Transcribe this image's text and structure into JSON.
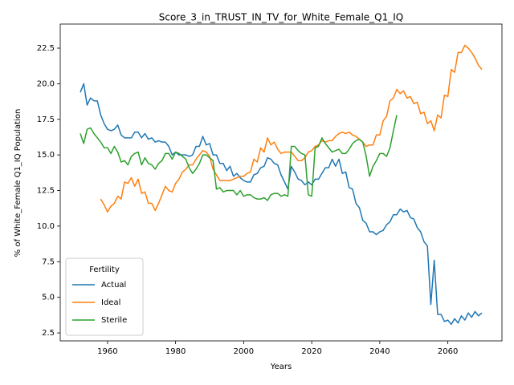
{
  "chart_data": {
    "type": "line",
    "title": "Score_3_in_TRUST_IN_TV_for_White_Female_Q1_IQ",
    "x_label": "Years",
    "y_label": "% of White_Female Q1_IQ Population",
    "legend_title": "Fertility",
    "legend": "lower left",
    "x": [
      1952,
      1953,
      1954,
      1955,
      1956,
      1957,
      1958,
      1959,
      1960,
      1961,
      1962,
      1963,
      1964,
      1965,
      1966,
      1967,
      1968,
      1969,
      1970,
      1971,
      1972,
      1973,
      1974,
      1975,
      1976,
      1977,
      1978,
      1979,
      1980,
      1981,
      1982,
      1983,
      1984,
      1985,
      1986,
      1987,
      1988,
      1989,
      1990,
      1991,
      1992,
      1993,
      1994,
      1995,
      1996,
      1997,
      1998,
      1999,
      2000,
      2001,
      2002,
      2003,
      2004,
      2005,
      2006,
      2007,
      2008,
      2009,
      2010,
      2011,
      2012,
      2013,
      2014,
      2015,
      2016,
      2017,
      2018,
      2019,
      2020,
      2021,
      2022,
      2023,
      2024,
      2025,
      2026,
      2027,
      2028,
      2029,
      2030,
      2031,
      2032,
      2033,
      2034,
      2035,
      2036,
      2037,
      2038,
      2039,
      2040,
      2041,
      2042,
      2043,
      2044,
      2045,
      2046,
      2047,
      2048,
      2049,
      2050,
      2051,
      2052,
      2053,
      2054,
      2055,
      2056,
      2057,
      2058,
      2059,
      2060,
      2061,
      2062,
      2063,
      2064,
      2065,
      2066,
      2067,
      2068,
      2069,
      2070
    ],
    "series": [
      {
        "name": "Actual",
        "color": "#1f77b4",
        "values": [
          19.4,
          20.0,
          18.5,
          19.0,
          18.8,
          18.8,
          17.8,
          17.2,
          16.8,
          16.7,
          16.8,
          17.1,
          16.4,
          16.2,
          16.2,
          16.2,
          16.6,
          16.6,
          16.2,
          16.5,
          16.1,
          16.2,
          15.9,
          16.0,
          15.9,
          15.9,
          15.6,
          15.0,
          15.2,
          15.0,
          15.0,
          15.0,
          14.9,
          15.0,
          15.6,
          15.6,
          16.3,
          15.7,
          15.8,
          15.0,
          15.0,
          14.4,
          14.4,
          13.9,
          14.2,
          13.5,
          13.7,
          13.4,
          13.2,
          13.1,
          13.1,
          13.6,
          13.7,
          14.1,
          14.2,
          14.8,
          14.7,
          14.4,
          14.3,
          13.6,
          13.1,
          12.6,
          14.2,
          13.8,
          13.3,
          13.2,
          12.9,
          13.1,
          12.9,
          13.3,
          13.3,
          13.7,
          14.1,
          14.1,
          14.7,
          14.2,
          14.7,
          13.7,
          13.8,
          12.7,
          12.6,
          11.6,
          11.3,
          10.4,
          10.2,
          9.6,
          9.6,
          9.4,
          9.6,
          9.7,
          10.1,
          10.3,
          10.8,
          10.8,
          11.2,
          11.0,
          11.1,
          10.6,
          10.5,
          9.9,
          9.6,
          8.9,
          8.6,
          4.5,
          7.6,
          3.8,
          3.8,
          3.3,
          3.4,
          3.1,
          3.5,
          3.2,
          3.7,
          3.4,
          3.9,
          3.6,
          4.0,
          3.7,
          3.9
        ]
      },
      {
        "name": "Ideal",
        "color": "#ff7f0e",
        "values": [
          null,
          null,
          null,
          null,
          null,
          null,
          11.9,
          11.5,
          11.0,
          11.4,
          11.6,
          12.1,
          11.9,
          13.1,
          13.0,
          13.4,
          12.8,
          13.3,
          12.3,
          12.4,
          11.6,
          11.6,
          11.1,
          11.6,
          12.2,
          12.8,
          12.5,
          12.4,
          13.0,
          13.3,
          13.8,
          14.0,
          14.3,
          14.3,
          14.7,
          15.0,
          15.3,
          15.2,
          14.9,
          14.0,
          13.6,
          13.2,
          13.2,
          13.2,
          13.2,
          13.3,
          13.4,
          13.5,
          13.5,
          13.7,
          13.8,
          14.7,
          14.5,
          15.5,
          15.2,
          16.2,
          15.7,
          15.9,
          15.4,
          15.1,
          15.2,
          15.2,
          15.2,
          14.9,
          14.6,
          14.6,
          14.8,
          15.2,
          15.3,
          15.6,
          15.7,
          16.0,
          15.9,
          16.0,
          16.0,
          16.3,
          16.5,
          16.6,
          16.5,
          16.6,
          16.4,
          16.3,
          16.1,
          15.9,
          15.6,
          15.7,
          15.7,
          16.4,
          16.4,
          17.4,
          17.7,
          18.8,
          19.0,
          19.6,
          19.3,
          19.5,
          19.0,
          19.1,
          18.6,
          18.7,
          17.9,
          18.0,
          17.2,
          17.4,
          16.7,
          17.8,
          17.6,
          19.2,
          19.1,
          21.0,
          20.8,
          22.2,
          22.2,
          22.7,
          22.5,
          22.2,
          21.8,
          21.3,
          21.0
        ]
      },
      {
        "name": "Sterile",
        "color": "#2ca02c",
        "values": [
          16.5,
          15.8,
          16.8,
          16.9,
          16.5,
          16.2,
          15.9,
          15.5,
          15.5,
          15.1,
          15.6,
          15.2,
          14.5,
          14.6,
          14.3,
          14.9,
          15.1,
          15.2,
          14.3,
          14.8,
          14.4,
          14.3,
          14.0,
          14.4,
          14.6,
          15.1,
          15.1,
          14.7,
          15.2,
          15.1,
          14.9,
          14.7,
          14.1,
          13.7,
          14.0,
          14.4,
          15.0,
          15.0,
          14.8,
          14.6,
          12.6,
          12.7,
          12.4,
          12.5,
          12.5,
          12.5,
          12.2,
          12.5,
          12.1,
          12.2,
          12.2,
          12.0,
          11.9,
          11.9,
          12.0,
          11.8,
          12.2,
          12.3,
          12.3,
          12.1,
          12.2,
          12.1,
          15.6,
          15.6,
          15.3,
          15.1,
          15.0,
          12.2,
          12.1,
          15.5,
          15.6,
          16.2,
          15.8,
          15.5,
          15.2,
          15.3,
          15.4,
          15.1,
          15.1,
          15.4,
          15.8,
          16.0,
          16.1,
          15.9,
          14.9,
          13.5,
          14.2,
          14.6,
          15.1,
          15.1,
          14.9,
          15.5,
          16.7,
          17.8,
          null,
          null,
          null,
          null,
          null,
          null,
          null,
          null,
          null,
          null,
          null,
          null,
          null,
          null,
          null,
          null,
          null,
          null,
          null,
          null,
          null,
          null,
          null,
          null,
          null
        ]
      }
    ],
    "xlim": [
      1946.1,
      2075.9
    ],
    "xticks": [
      1960,
      1980,
      2000,
      2020,
      2040,
      2060
    ],
    "ylim": [
      1.94,
      24.19
    ],
    "yticks": [
      2.5,
      {
        "value": 5,
        "label": "5.0"
      },
      7.5,
      {
        "value": 10,
        "label": "10.0"
      },
      12.5,
      {
        "value": 15,
        "label": "15.0"
      },
      17.5,
      {
        "value": 20,
        "label": "20.0"
      },
      22.5
    ]
  }
}
